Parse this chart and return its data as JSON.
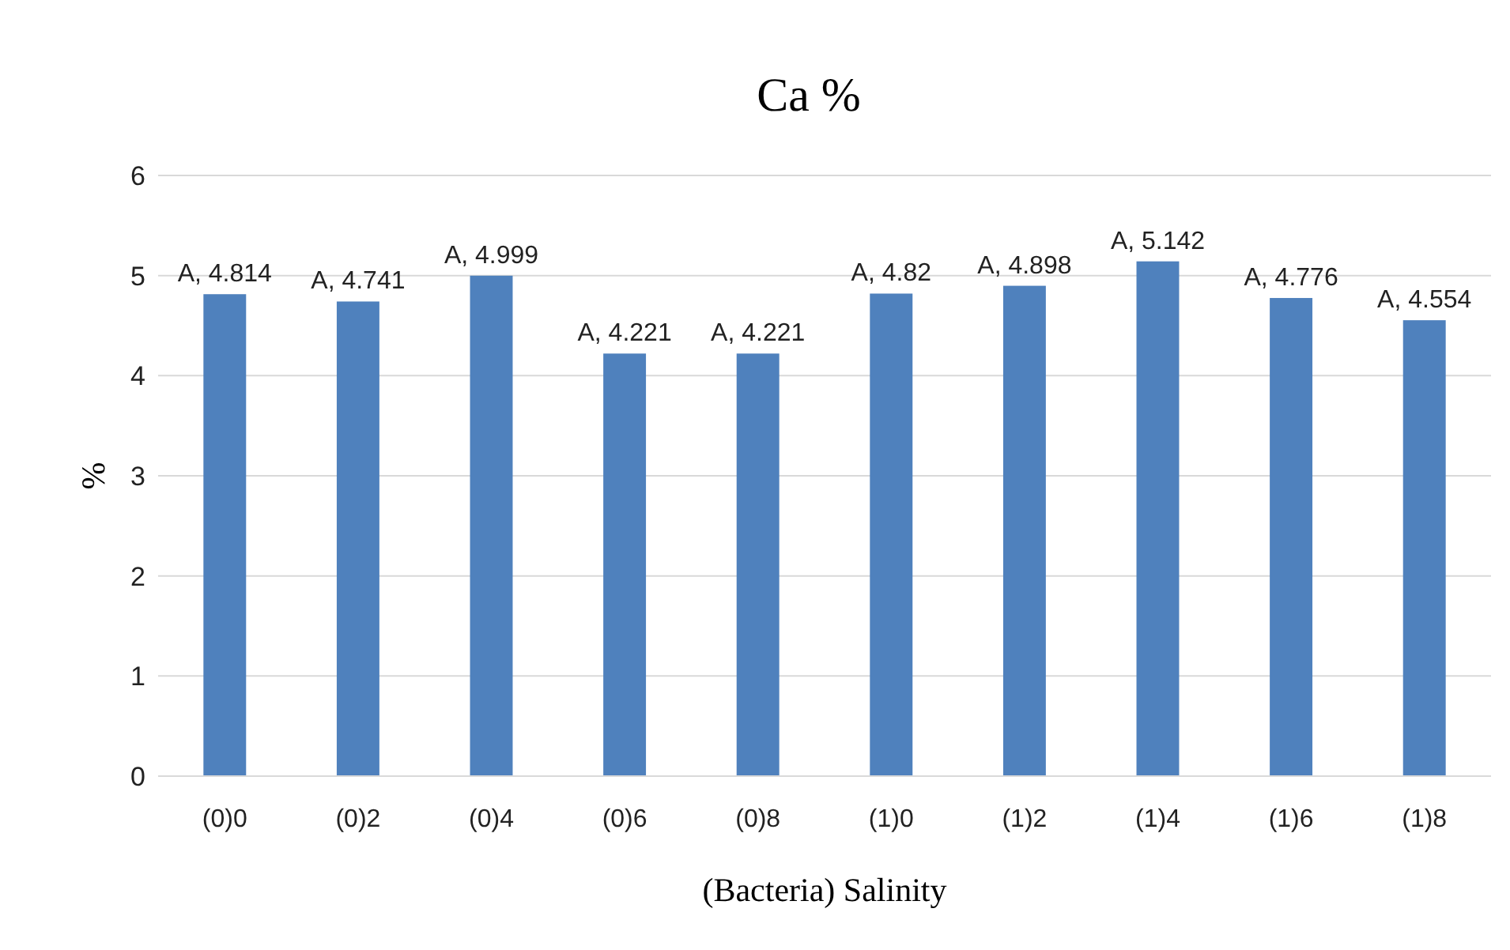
{
  "chart_data": {
    "type": "bar",
    "title": "Ca %",
    "xlabel": "(Bacteria) Salinity",
    "ylabel": "%",
    "categories": [
      "(0)0",
      "(0)2",
      "(0)4",
      "(0)6",
      "(0)8",
      "(1)0",
      "(1)2",
      "(1)4",
      "(1)6",
      "(1)8"
    ],
    "values": [
      4.814,
      4.741,
      4.999,
      4.221,
      4.221,
      4.82,
      4.898,
      5.142,
      4.776,
      4.554
    ],
    "value_labels": [
      "A, 4.814",
      "A, 4.741",
      "A, 4.999",
      "A, 4.221",
      "A, 4.221",
      "A, 4.82",
      "A, 4.898",
      "A, 5.142",
      "A, 4.776",
      "A, 4.554"
    ],
    "color": "#4f81bd",
    "ylim": [
      0,
      6
    ],
    "yticks": [
      0,
      1,
      2,
      3,
      4,
      5,
      6
    ],
    "grid": "y"
  }
}
